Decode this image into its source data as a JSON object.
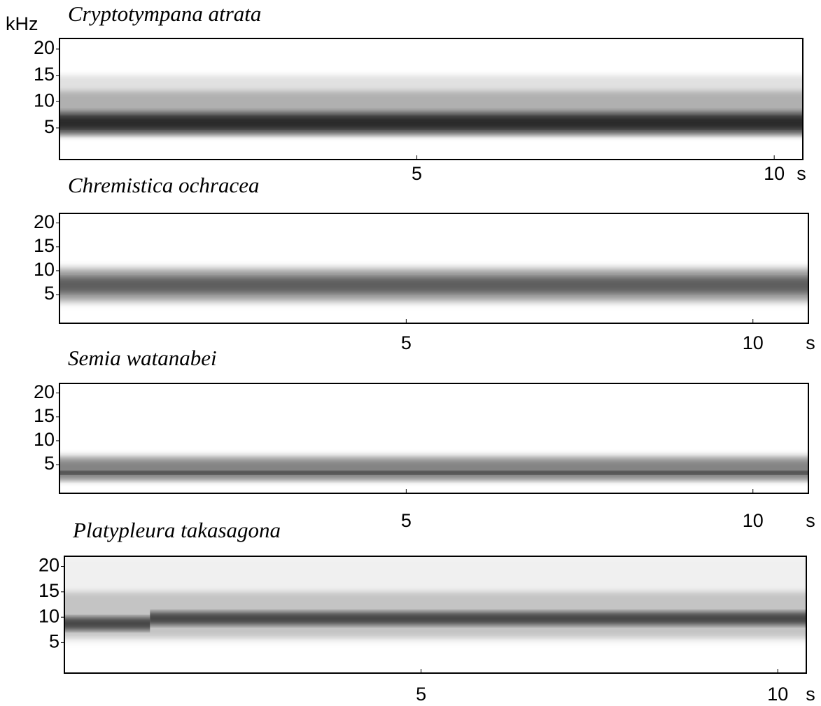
{
  "chart_data": [
    {
      "type": "spectrogram",
      "title": "Cryptotympana atrata",
      "ylabel": "kHz",
      "xlabel": "s",
      "xlim": [
        0,
        10.4
      ],
      "xticks": [
        5,
        10
      ],
      "ylim": [
        -1,
        22
      ],
      "yticks": [
        5,
        10,
        15,
        20
      ],
      "bands": [
        {
          "low": 3.5,
          "high": 15,
          "x": [
            0,
            10.4
          ],
          "color": "#dcdcdc"
        },
        {
          "low": 3.5,
          "high": 12,
          "x": [
            0,
            10.4
          ],
          "color": "#a8a8a8"
        },
        {
          "low": 4,
          "high": 8,
          "x": [
            0,
            10.4
          ],
          "color": "#3c3c3c"
        },
        {
          "low": 5,
          "high": 7,
          "x": [
            0,
            10.4
          ],
          "color": "#222222"
        }
      ]
    },
    {
      "type": "spectrogram",
      "title": "Chremistica ochracea",
      "xlabel": "s",
      "xlim": [
        0,
        10.8
      ],
      "xticks": [
        5,
        10
      ],
      "ylim": [
        -1,
        22
      ],
      "yticks": [
        5,
        10,
        15,
        20
      ],
      "bands": [
        {
          "low": 3,
          "high": 11,
          "x": [
            0,
            10.8
          ],
          "color": "#d0d0d0"
        },
        {
          "low": 4,
          "high": 10,
          "x": [
            0,
            10.8
          ],
          "color": "#8c8c8c"
        },
        {
          "low": 5.5,
          "high": 8.5,
          "x": [
            0,
            10.8
          ],
          "color": "#555555"
        }
      ]
    },
    {
      "type": "spectrogram",
      "title": "Semia watanabei",
      "xlabel": "s",
      "xlim": [
        0,
        10.8
      ],
      "xticks": [
        5,
        10
      ],
      "ylim": [
        -1,
        22
      ],
      "yticks": [
        5,
        10,
        15,
        20
      ],
      "bands": [
        {
          "low": 1.5,
          "high": 7,
          "x": [
            0,
            10.8
          ],
          "color": "#b4b4b4"
        },
        {
          "low": 2,
          "high": 6,
          "x": [
            0,
            10.8
          ],
          "color": "#7a7a7a"
        },
        {
          "low": 3,
          "high": 3.6,
          "x": [
            0,
            10.8
          ],
          "color": "#111111"
        }
      ]
    },
    {
      "type": "spectrogram",
      "title": "Platypleura takasagona",
      "xlabel": "s",
      "xlim": [
        0,
        10.4
      ],
      "xticks": [
        5,
        10
      ],
      "ylim": [
        -1,
        22
      ],
      "yticks": [
        5,
        10,
        15,
        20
      ],
      "bands": [
        {
          "low": 5,
          "high": 22,
          "x": [
            0,
            10.4
          ],
          "color": "#eeeeee"
        },
        {
          "low": 6,
          "high": 15,
          "x": [
            0,
            10.4
          ],
          "color": "#bdbdbd"
        },
        {
          "low": 7.5,
          "high": 10,
          "x": [
            0,
            1.2
          ],
          "color": "#333333"
        },
        {
          "low": 8.5,
          "high": 11,
          "x": [
            1.2,
            10.4
          ],
          "color": "#333333"
        }
      ]
    }
  ]
}
